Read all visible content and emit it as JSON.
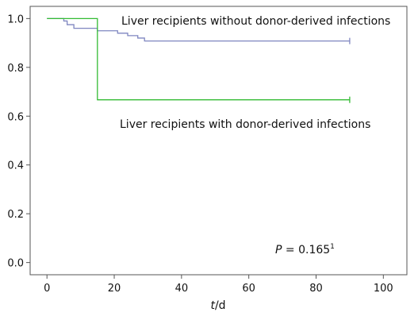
{
  "chart_data": {
    "type": "line",
    "subtype": "kaplan-meier step curve",
    "xlabel_italic": "t",
    "xlabel_unit": "/d",
    "ylabel": "",
    "xlim": [
      -5,
      107
    ],
    "ylim": [
      -0.05,
      1.05
    ],
    "xticks": [
      0,
      20,
      40,
      60,
      80,
      100
    ],
    "yticks": [
      0.0,
      0.2,
      0.4,
      0.6,
      0.8,
      1.0
    ],
    "xtick_labels": [
      "0",
      "20",
      "40",
      "60",
      "80",
      "100"
    ],
    "ytick_labels": [
      "0.0",
      "0.2",
      "0.4",
      "0.6",
      "0.8",
      "1.0"
    ],
    "grid": false,
    "series": [
      {
        "name": "Liver recipients without donor-derived infections",
        "color": "#7f86c0",
        "x": [
          0,
          5,
          5,
          6,
          6,
          8,
          8,
          15,
          15,
          21,
          21,
          24,
          24,
          27,
          27,
          29,
          29,
          90
        ],
        "y": [
          1.0,
          1.0,
          0.99,
          0.99,
          0.975,
          0.975,
          0.96,
          0.96,
          0.95,
          0.95,
          0.94,
          0.94,
          0.93,
          0.93,
          0.92,
          0.92,
          0.908,
          0.908
        ],
        "censor_x": [
          90
        ],
        "censor_y": [
          0.908
        ]
      },
      {
        "name": "Liver recipients with donor-derived infections",
        "color": "#33bb33",
        "x": [
          0,
          15,
          15,
          90
        ],
        "y": [
          1.0,
          1.0,
          0.667,
          0.667
        ],
        "censor_x": [
          90
        ],
        "censor_y": [
          0.667
        ]
      }
    ],
    "annotations": {
      "p_label": "P",
      "p_value": " = 0.165",
      "p_superscript": "1"
    }
  }
}
